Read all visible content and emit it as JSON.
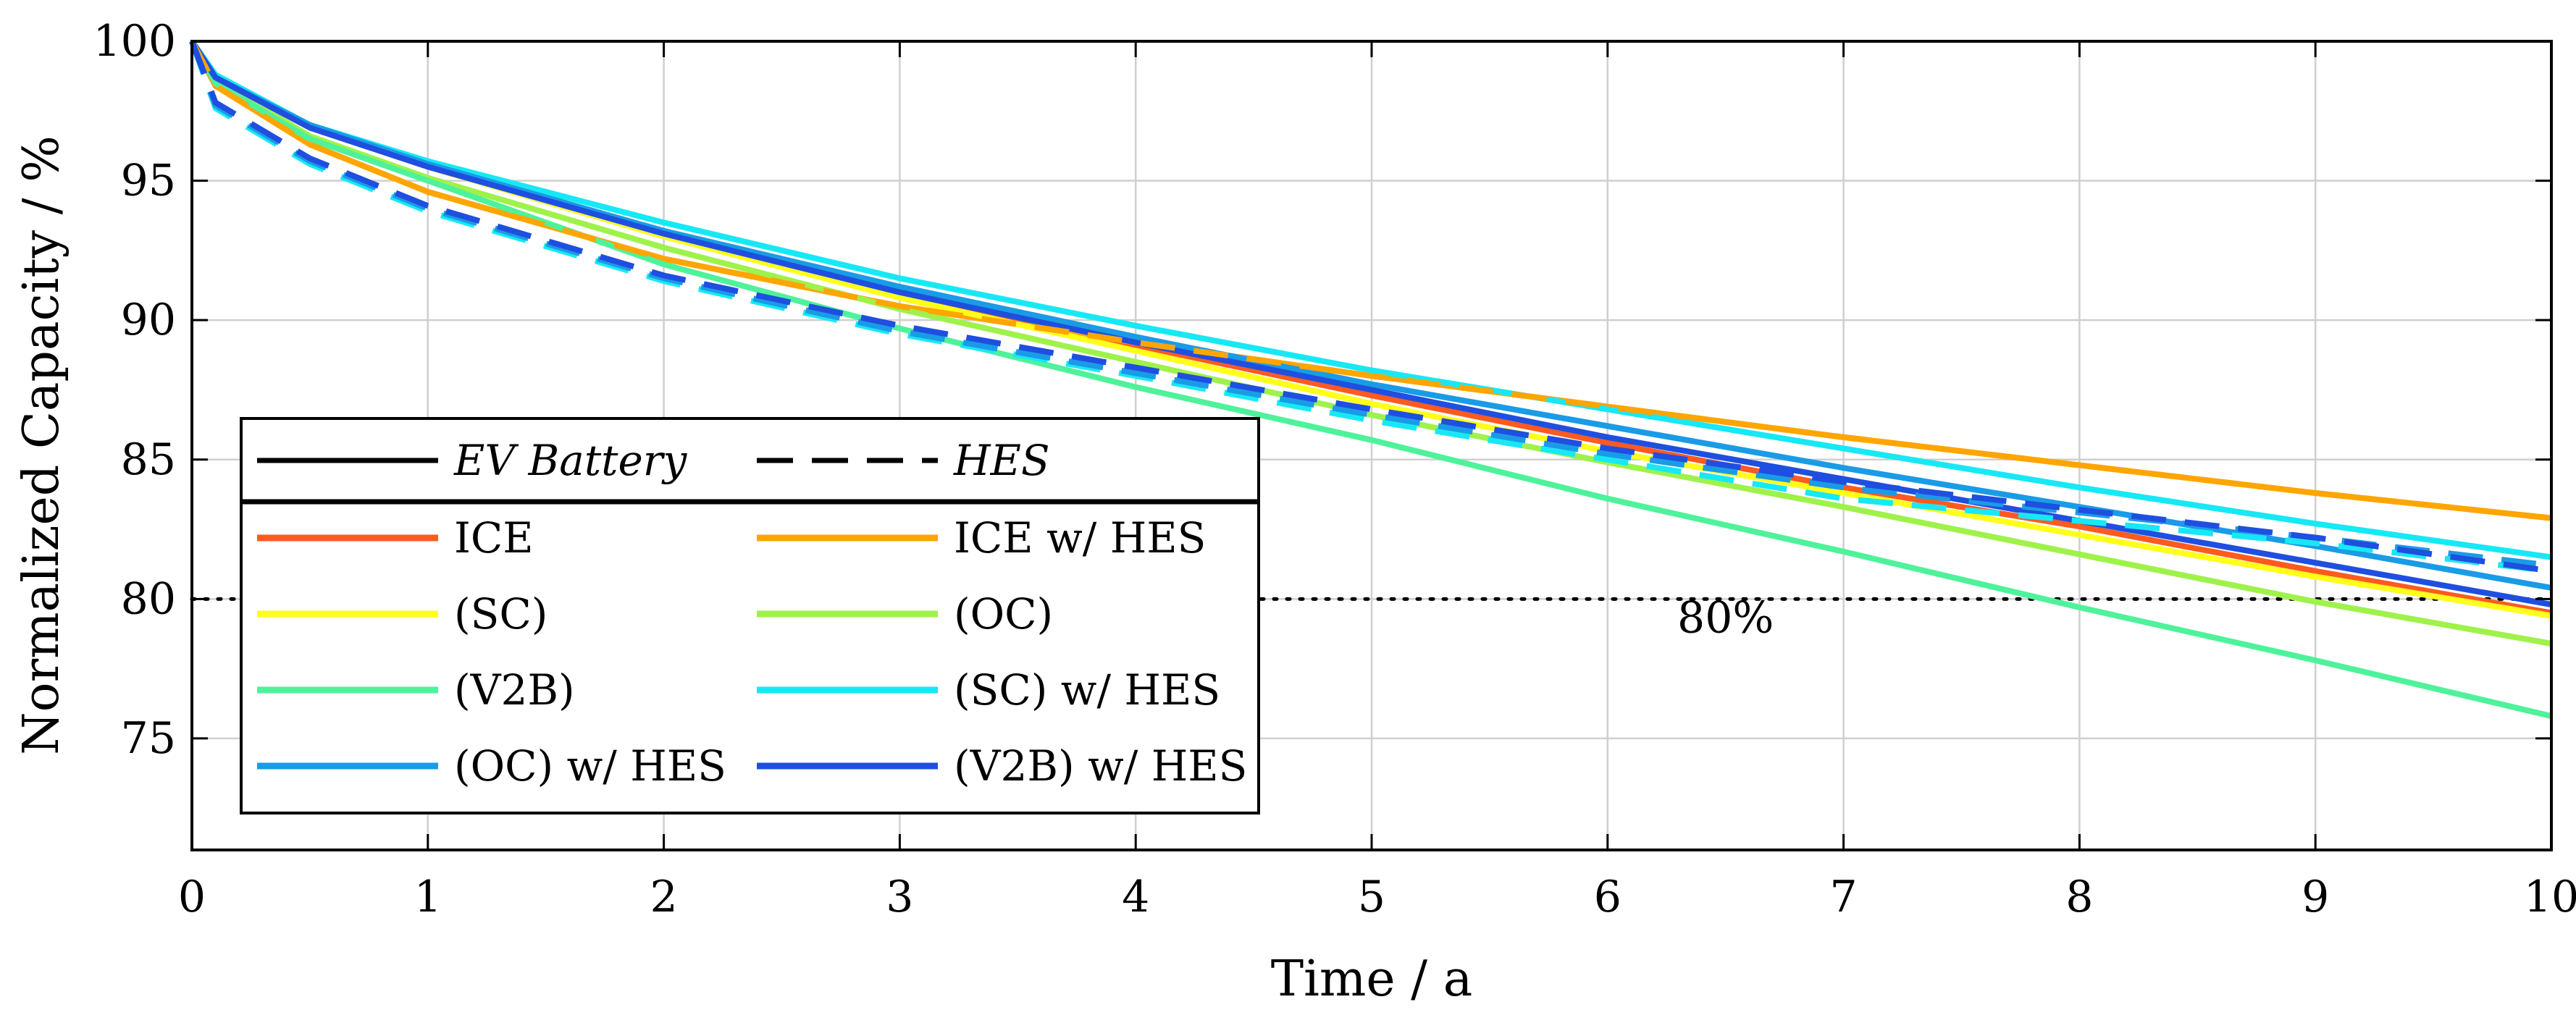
{
  "chart_data": {
    "type": "line",
    "title": "",
    "xlabel": "Time / a",
    "ylabel": "Normalized Capacity / %",
    "xlim": [
      0,
      10
    ],
    "ylim": [
      71,
      100
    ],
    "x_ticks": [
      0,
      1,
      2,
      3,
      4,
      5,
      6,
      7,
      8,
      9,
      10
    ],
    "x_tick_labels": [
      "0",
      "1",
      "2",
      "3",
      "4",
      "5",
      "6",
      "7",
      "8",
      "9",
      "10"
    ],
    "y_ticks": [
      75,
      80,
      85,
      90,
      95,
      100
    ],
    "y_tick_labels": [
      "75",
      "80",
      "85",
      "90",
      "95",
      "100"
    ],
    "grid": true,
    "legend_position": "bottom-left",
    "legend_styles": [
      {
        "label": "EV Battery",
        "dash": "solid"
      },
      {
        "label": "HES",
        "dash": "dashed"
      }
    ],
    "reference_line": {
      "y": 80,
      "label": "80%",
      "label_x": 6.5,
      "label_y": 78.8,
      "style": "dotted"
    },
    "series": [
      {
        "name": "ICE",
        "color": "#ff5a1f",
        "style": "solid",
        "x": [
          0,
          0.1,
          0.5,
          1,
          2,
          3,
          4,
          5,
          6,
          7,
          8,
          9,
          10
        ],
        "y": [
          100,
          98.7,
          96.9,
          95.5,
          93.0,
          90.9,
          89.1,
          87.3,
          85.6,
          84.0,
          82.6,
          81.0,
          79.5
        ]
      },
      {
        "name": "ICE w/ HES",
        "color": "#ffa500",
        "style": "solid",
        "x": [
          0,
          0.1,
          0.5,
          1,
          2,
          3,
          4,
          5,
          6,
          7,
          8,
          9,
          10
        ],
        "y": [
          100,
          98.4,
          96.3,
          94.6,
          92.2,
          90.5,
          89.2,
          88.0,
          86.9,
          85.8,
          84.8,
          83.8,
          82.9
        ]
      },
      {
        "name": "(SC)",
        "color": "#ffff1a",
        "style": "solid",
        "x": [
          0,
          0.1,
          0.5,
          1,
          2,
          3,
          4,
          5,
          6,
          7,
          8,
          9,
          10
        ],
        "y": [
          100,
          98.7,
          96.9,
          95.5,
          93.0,
          90.8,
          88.9,
          87.0,
          85.3,
          83.8,
          82.3,
          80.8,
          79.4
        ]
      },
      {
        "name": "(OC)",
        "color": "#9ef24a",
        "style": "solid",
        "x": [
          0,
          0.1,
          0.5,
          1,
          2,
          3,
          4,
          5,
          6,
          7,
          8,
          9,
          10
        ],
        "y": [
          100,
          98.6,
          96.6,
          95.1,
          92.6,
          90.4,
          88.5,
          86.6,
          84.9,
          83.3,
          81.6,
          79.9,
          78.4
        ]
      },
      {
        "name": "(V2B)",
        "color": "#4ef29a",
        "style": "solid",
        "x": [
          0,
          0.1,
          0.5,
          1,
          2,
          3,
          4,
          5,
          6,
          7,
          8,
          9,
          10
        ],
        "y": [
          100,
          98.5,
          96.5,
          95.0,
          92.0,
          89.7,
          87.6,
          85.7,
          83.6,
          81.7,
          79.7,
          77.8,
          75.8
        ]
      },
      {
        "name": "(SC) w/ HES",
        "color": "#17e8f5",
        "style": "solid",
        "x": [
          0,
          0.1,
          0.5,
          1,
          2,
          3,
          4,
          5,
          6,
          7,
          8,
          9,
          10
        ],
        "y": [
          100,
          98.8,
          97.0,
          95.7,
          93.5,
          91.5,
          89.8,
          88.2,
          86.8,
          85.4,
          84.0,
          82.7,
          81.5
        ]
      },
      {
        "name": "(OC) w/ HES",
        "color": "#1a9be6",
        "style": "solid",
        "x": [
          0,
          0.1,
          0.5,
          1,
          2,
          3,
          4,
          5,
          6,
          7,
          8,
          9,
          10
        ],
        "y": [
          100,
          98.7,
          97.0,
          95.6,
          93.2,
          91.2,
          89.4,
          87.7,
          86.2,
          84.7,
          83.3,
          81.9,
          80.4
        ]
      },
      {
        "name": "(V2B) w/ HES",
        "color": "#1f4fe0",
        "style": "solid",
        "x": [
          0,
          0.1,
          0.5,
          1,
          2,
          3,
          4,
          5,
          6,
          7,
          8,
          9,
          10
        ],
        "y": [
          100,
          98.7,
          96.9,
          95.5,
          93.1,
          91.0,
          89.2,
          87.5,
          85.8,
          84.3,
          82.8,
          81.3,
          79.8
        ]
      },
      {
        "name": "ICE (HES)",
        "color": "#ffa500",
        "style": "dashed",
        "x": [
          0,
          0.1,
          0.5,
          1,
          2,
          3,
          4,
          5,
          6,
          7,
          8,
          9,
          10
        ],
        "y": [
          100,
          98.4,
          96.3,
          94.6,
          92.2,
          90.5,
          89.2,
          88.0,
          86.9,
          85.8,
          84.8,
          83.8,
          82.9
        ]
      },
      {
        "name": "(SC) (HES)",
        "color": "#17e8f5",
        "style": "dashed",
        "x": [
          0,
          0.1,
          0.5,
          1,
          2,
          3,
          4,
          5,
          6,
          7,
          8,
          9,
          10
        ],
        "y": [
          100,
          97.6,
          95.6,
          93.9,
          91.4,
          89.5,
          88.0,
          86.4,
          85.0,
          83.6,
          82.8,
          82.0,
          81.0
        ]
      },
      {
        "name": "(OC) (HES)",
        "color": "#1a9be6",
        "style": "dashed",
        "x": [
          0,
          0.1,
          0.5,
          1,
          2,
          3,
          4,
          5,
          6,
          7,
          8,
          9,
          10
        ],
        "y": [
          100,
          97.7,
          95.7,
          94.0,
          91.5,
          89.6,
          88.1,
          86.6,
          85.2,
          84.0,
          83.1,
          82.2,
          81.2
        ]
      },
      {
        "name": "(V2B) (HES)",
        "color": "#1f4fe0",
        "style": "dashed",
        "x": [
          0,
          0.1,
          0.5,
          1,
          2,
          3,
          4,
          5,
          6,
          7,
          8,
          9,
          10
        ],
        "y": [
          100,
          97.8,
          95.8,
          94.1,
          91.6,
          89.8,
          88.3,
          86.8,
          85.4,
          84.2,
          83.2,
          82.2,
          81.0
        ]
      }
    ],
    "legend_entries": [
      {
        "label": "ICE",
        "color": "#ff5a1f"
      },
      {
        "label": "ICE w/ HES",
        "color": "#ffa500"
      },
      {
        "label": "(SC)",
        "color": "#ffff1a"
      },
      {
        "label": "(OC)",
        "color": "#9ef24a"
      },
      {
        "label": "(V2B)",
        "color": "#4ef29a"
      },
      {
        "label": "(SC) w/ HES",
        "color": "#17e8f5"
      },
      {
        "label": "(OC) w/ HES",
        "color": "#1a9be6"
      },
      {
        "label": "(V2B) w/ HES",
        "color": "#1f4fe0"
      }
    ]
  }
}
